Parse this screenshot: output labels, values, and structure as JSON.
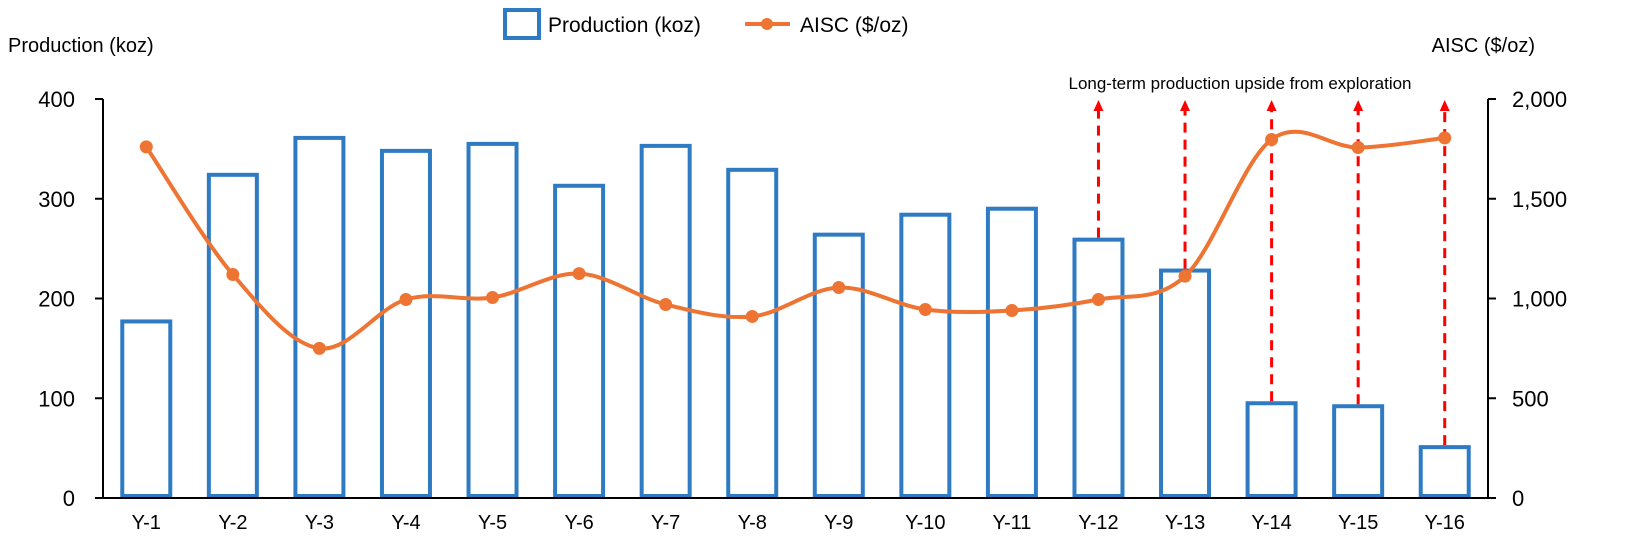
{
  "chart_data": {
    "type": "bar+line",
    "categories": [
      "Y-1",
      "Y-2",
      "Y-3",
      "Y-4",
      "Y-5",
      "Y-6",
      "Y-7",
      "Y-8",
      "Y-9",
      "Y-10",
      "Y-11",
      "Y-12",
      "Y-13",
      "Y-14",
      "Y-15",
      "Y-16"
    ],
    "series": [
      {
        "name": "Production (koz)",
        "type": "bar",
        "axis": "left",
        "values": [
          177,
          324,
          361,
          348,
          355,
          313,
          353,
          329,
          264,
          284,
          290,
          259,
          228,
          95,
          92,
          51
        ]
      },
      {
        "name": "AISC ($/oz)",
        "type": "line",
        "axis": "right",
        "smooth": true,
        "values": [
          1760,
          1120,
          750,
          995,
          1005,
          1125,
          970,
          910,
          1055,
          945,
          940,
          995,
          1112,
          1797,
          1757,
          1805
        ]
      }
    ],
    "ylabel_left": "Production (koz)",
    "ylabel_right": "AISC ($/oz)",
    "ylim_left": [
      0,
      400
    ],
    "ylim_right": [
      0,
      2000
    ],
    "yticks_left": [
      "0",
      "100",
      "200",
      "300",
      "400"
    ],
    "yticks_right": [
      "0",
      "500",
      "1,000",
      "1,500",
      "2,000"
    ],
    "legend_position": "top-center",
    "grid": false,
    "annotation": {
      "text": "Long-term production upside from exploration",
      "arrow_categories": [
        "Y-12",
        "Y-13",
        "Y-14",
        "Y-15",
        "Y-16"
      ]
    },
    "colors": {
      "bar": "#2E7BC4",
      "line": "#ED7433",
      "arrow": "#FF0000"
    }
  }
}
